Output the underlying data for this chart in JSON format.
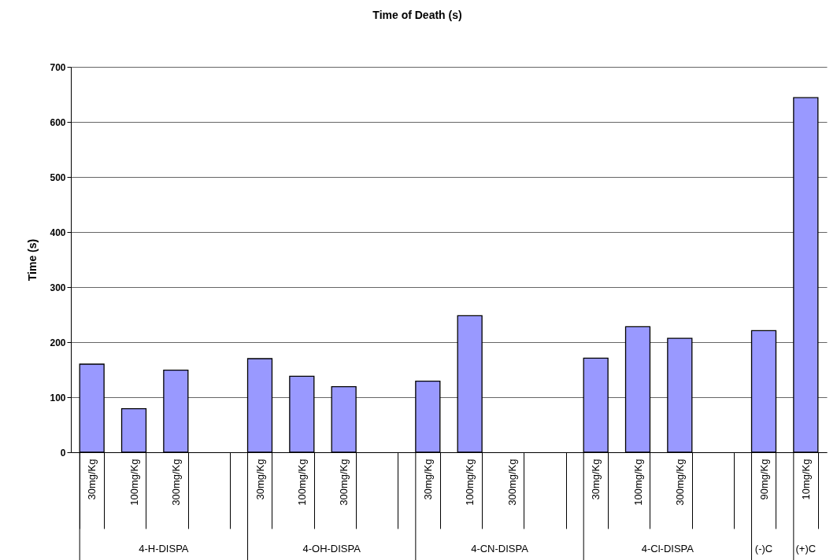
{
  "chart_data": {
    "type": "bar",
    "title": "Time of Death (s)",
    "ylabel": "Time (s)",
    "categories": [
      "30mg/Kg",
      "100mg/Kg",
      "300mg/Kg",
      null,
      "30mg/Kg",
      "100mg/Kg",
      "300mg/Kg",
      null,
      "30mg/Kg",
      "100mg/Kg",
      "300mg/Kg",
      null,
      "30mg/Kg",
      "100mg/Kg",
      "300mg/Kg",
      null,
      "90mg/Kg",
      "10mg/Kg"
    ],
    "values": [
      160,
      79,
      149,
      null,
      170,
      138,
      119,
      null,
      129,
      248,
      null,
      null,
      171,
      228,
      207,
      null,
      221,
      644
    ],
    "color": "#9999ff",
    "annotations": [
      "4-H-DISPA",
      "4-OH-DISPA",
      "4-CN-DISPA",
      "4-Cl-DISPA",
      "(-)C",
      "(+)C"
    ],
    "ylim": [
      0,
      700
    ],
    "yticks": [
      0,
      100,
      200,
      300,
      400,
      500,
      600,
      700
    ],
    "grid": "y"
  }
}
